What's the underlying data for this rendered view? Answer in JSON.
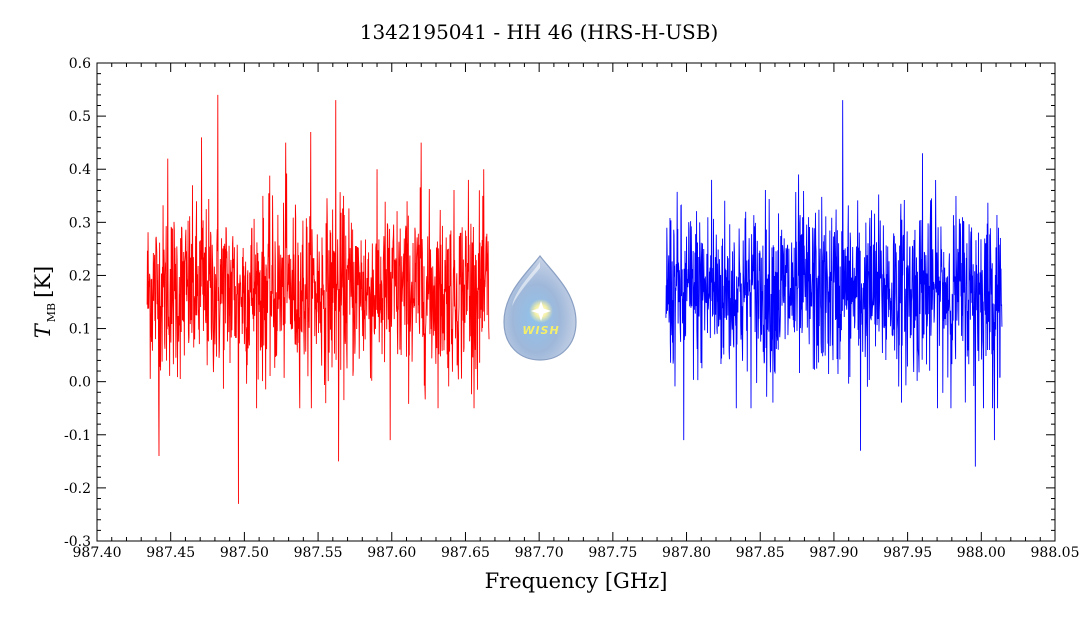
{
  "chart_data": {
    "type": "line",
    "title": "1342195041 - HH 46 (HRS-H-USB)",
    "xlabel": "Frequency [GHz]",
    "ylabel_main": "T",
    "ylabel_sub": "MB",
    "ylabel_unit": "[K]",
    "xlim": [
      987.4,
      988.05
    ],
    "ylim": [
      -0.3,
      0.6
    ],
    "x_ticks": [
      "987.40",
      "987.45",
      "987.50",
      "987.55",
      "987.60",
      "987.65",
      "987.70",
      "987.75",
      "987.80",
      "987.85",
      "987.90",
      "987.95",
      "988.00",
      "988.05"
    ],
    "y_ticks": [
      "-0.3",
      "-0.2",
      "-0.1",
      "0.0",
      "0.1",
      "0.2",
      "0.3",
      "0.4",
      "0.5",
      "0.6"
    ],
    "grid": false,
    "series": [
      {
        "color": "#ff0000",
        "x_range": [
          987.434,
          987.666
        ],
        "baseline": 0.17,
        "noise_rms": 0.08,
        "spikes": [
          {
            "x": 987.442,
            "y": -0.14
          },
          {
            "x": 987.448,
            "y": 0.42
          },
          {
            "x": 987.471,
            "y": 0.46
          },
          {
            "x": 987.482,
            "y": 0.54
          },
          {
            "x": 987.496,
            "y": -0.23
          },
          {
            "x": 987.528,
            "y": 0.45
          },
          {
            "x": 987.545,
            "y": 0.47
          },
          {
            "x": 987.562,
            "y": 0.53
          },
          {
            "x": 987.564,
            "y": -0.15
          },
          {
            "x": 987.599,
            "y": -0.11
          },
          {
            "x": 987.62,
            "y": 0.45
          },
          {
            "x": 987.652,
            "y": 0.38
          }
        ]
      },
      {
        "color": "#0000ff",
        "x_range": [
          987.786,
          988.014
        ],
        "baseline": 0.17,
        "noise_rms": 0.08,
        "spikes": [
          {
            "x": 987.798,
            "y": -0.11
          },
          {
            "x": 987.817,
            "y": 0.38
          },
          {
            "x": 987.876,
            "y": 0.39
          },
          {
            "x": 987.906,
            "y": 0.53
          },
          {
            "x": 987.918,
            "y": -0.13
          },
          {
            "x": 987.96,
            "y": 0.43
          },
          {
            "x": 987.996,
            "y": -0.16
          },
          {
            "x": 988.009,
            "y": -0.11
          }
        ]
      }
    ]
  },
  "logo": {
    "text": "WISH",
    "icon": "wish-logo-drop-icon"
  }
}
